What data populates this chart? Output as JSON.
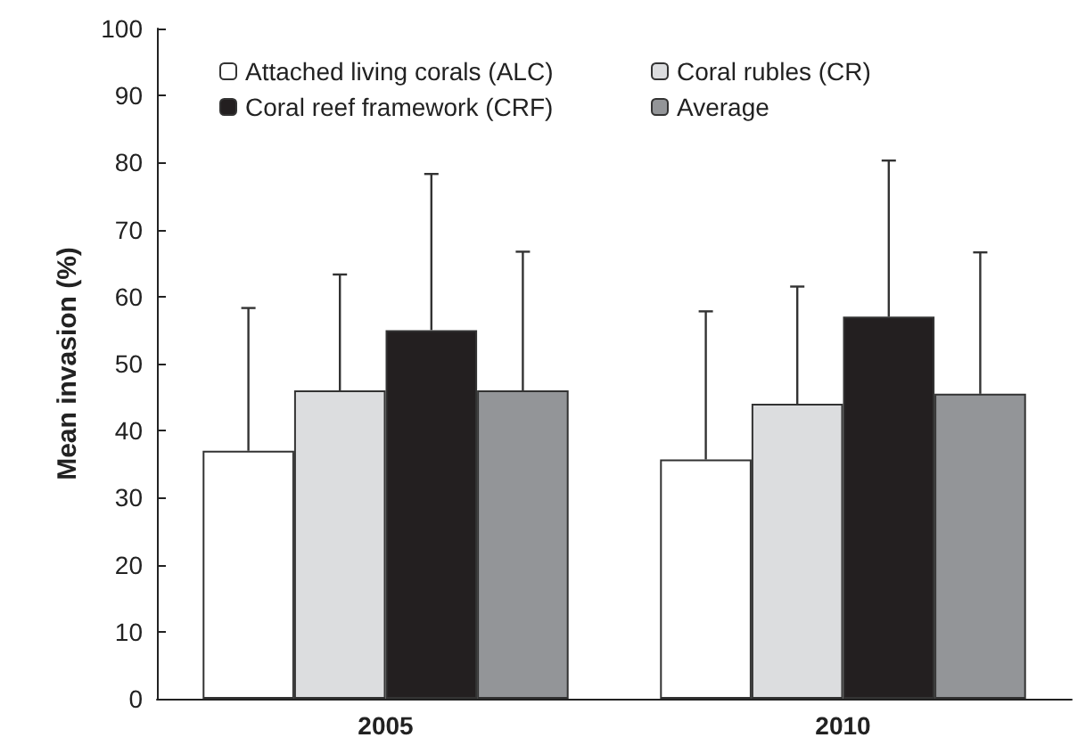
{
  "chart_data": {
    "type": "bar",
    "ylabel": "Mean invasion (%)",
    "categories": [
      "2005",
      "2010"
    ],
    "series": [
      {
        "name": "Attached living corals (ALC)",
        "color": "#ffffff",
        "values": [
          37,
          35.7
        ],
        "errors": [
          [
            37,
            58.3
          ],
          [
            35.7,
            57.8
          ]
        ]
      },
      {
        "name": "Coral rubles (CR)",
        "color": "#dcdddf",
        "values": [
          46,
          44
        ],
        "errors": [
          [
            46,
            63.3
          ],
          [
            44,
            61.5
          ]
        ]
      },
      {
        "name": "Coral reef framework (CRF)",
        "color": "#231f20",
        "values": [
          55,
          57
        ],
        "errors": [
          [
            55,
            78.3
          ],
          [
            57,
            80.3
          ]
        ]
      },
      {
        "name": "Average",
        "color": "#939598",
        "values": [
          46,
          45.5
        ],
        "errors": [
          [
            46,
            66.7
          ],
          [
            45.5,
            66.6
          ]
        ]
      }
    ],
    "ylim": [
      0,
      100
    ],
    "yticks": [
      0,
      10,
      20,
      30,
      40,
      50,
      60,
      70,
      80,
      90,
      100
    ],
    "grid": false,
    "legend": "top"
  }
}
